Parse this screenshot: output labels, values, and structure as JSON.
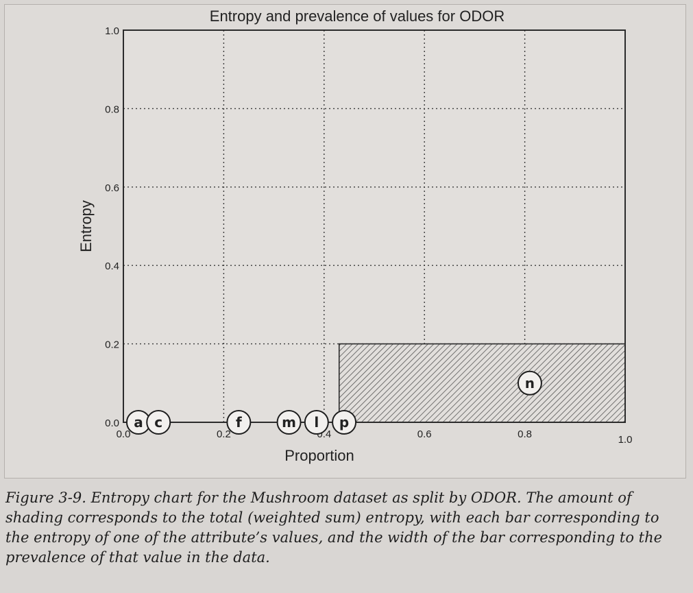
{
  "chart_data": {
    "type": "bar",
    "title": "Entropy and prevalence of values for ODOR",
    "xlabel": "Proportion",
    "ylabel": "Entropy",
    "xlim": [
      0.0,
      1.0
    ],
    "ylim": [
      0.0,
      1.0
    ],
    "x_ticks": [
      "0.0",
      "0.2",
      "0.4",
      "0.6",
      "0.8",
      "1.0"
    ],
    "y_ticks": [
      "0.0",
      "0.2",
      "0.4",
      "0.6",
      "0.8",
      "1.0"
    ],
    "grid": true,
    "bar_fill": "hatched",
    "values": [
      {
        "label": "a",
        "x0": 0.0,
        "width": 0.05,
        "entropy": 0.0
      },
      {
        "label": "c",
        "x0": 0.05,
        "width": 0.02,
        "entropy": 0.0
      },
      {
        "label": "f",
        "x0": 0.07,
        "width": 0.27,
        "entropy": 0.0
      },
      {
        "label": "m",
        "x0": 0.34,
        "width": 0.01,
        "entropy": 0.0
      },
      {
        "label": "l",
        "x0": 0.35,
        "width": 0.05,
        "entropy": 0.0
      },
      {
        "label": "p",
        "x0": 0.4,
        "width": 0.03,
        "entropy": 0.0
      },
      {
        "label": "n",
        "x0": 0.43,
        "width": 0.57,
        "entropy": 0.2
      }
    ],
    "bar_labels": [
      {
        "label": "a",
        "x": 0.03
      },
      {
        "label": "c",
        "x": 0.07
      },
      {
        "label": "f",
        "x": 0.23
      },
      {
        "label": "m",
        "x": 0.33
      },
      {
        "label": "l",
        "x": 0.385
      },
      {
        "label": "p",
        "x": 0.44
      },
      {
        "label": "n",
        "x": 0.81,
        "y": 0.1
      }
    ]
  },
  "caption": {
    "label": "Figure 3-9.",
    "text": "Entropy chart for the Mushroom dataset as split by ODOR. The amount of shading corresponds to the total (weighted sum) entropy, with each bar corresponding to the entropy of one of the attribute’s values, and the width of the bar corresponding to the prevalence of that value in the data."
  },
  "colors": {
    "axis": "#2b2b2b",
    "grid": "#3a3a3a",
    "hatch": "#555555",
    "plot_bg": "#e2dfdc",
    "circle_fill": "#f2f0ee"
  }
}
